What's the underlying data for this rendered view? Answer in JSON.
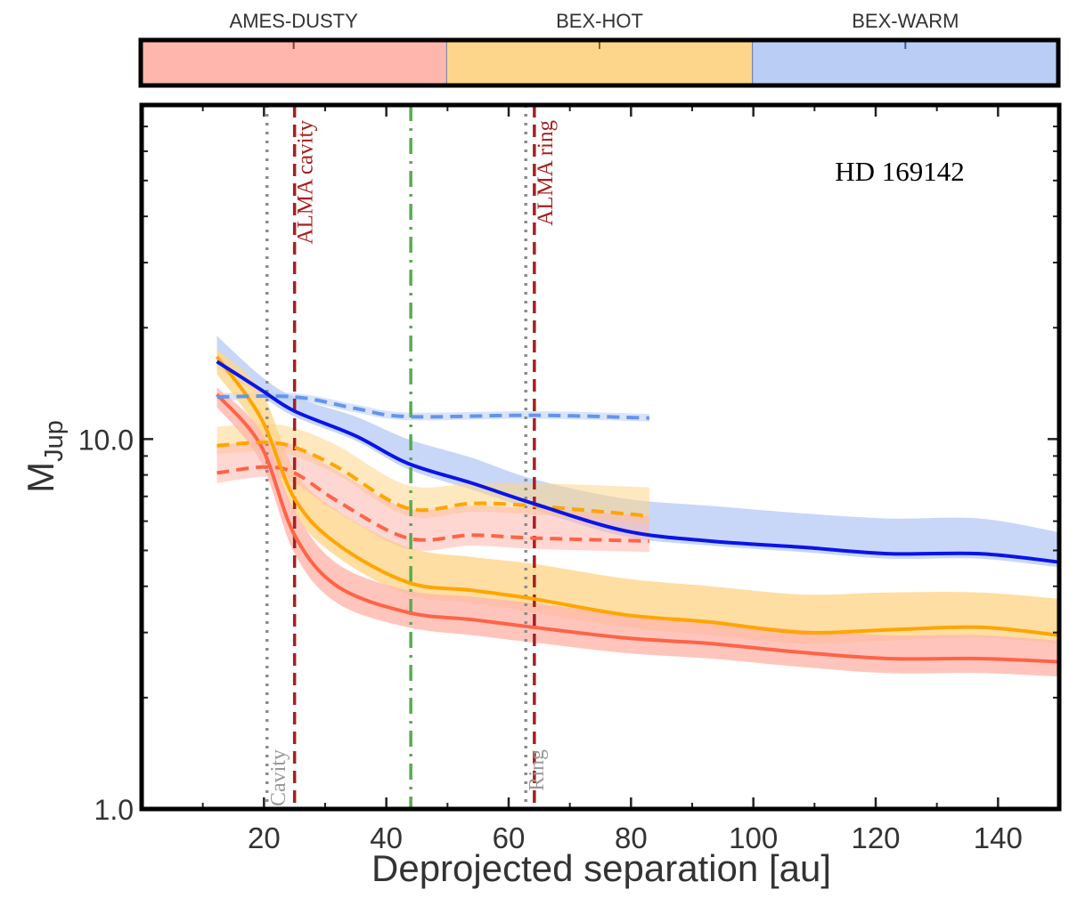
{
  "chart_data": {
    "type": "line",
    "title": "",
    "annotation": "HD 169142",
    "xlabel": "Deprojected separation [au]",
    "ylabel": "M",
    "ylabel_sub": "Jup",
    "xlim": [
      0,
      150
    ],
    "ylim": [
      1,
      80
    ],
    "yscale": "log",
    "grid": false,
    "xticks": [
      20,
      40,
      60,
      80,
      100,
      120,
      140
    ],
    "xtick_labels": [
      "20",
      "40",
      "60",
      "80",
      "100",
      "120",
      "140"
    ],
    "xminor": [
      10,
      30,
      50,
      70,
      90,
      110,
      130
    ],
    "yticks": [
      1,
      10
    ],
    "ytick_labels": [
      "1.0",
      "10.0"
    ],
    "yminor": [
      2,
      3,
      4,
      5,
      6,
      7,
      8,
      9,
      20,
      30,
      40,
      50,
      60,
      70,
      80
    ],
    "legend": {
      "placement": "top",
      "entries": [
        {
          "label": "AMES-DUSTY",
          "color": "#ffb7ad"
        },
        {
          "label": "BEX-HOT",
          "color": "#fed68b"
        },
        {
          "label": "BEX-WARM",
          "color": "#bacdf5"
        }
      ]
    },
    "vlines": [
      {
        "name": "cavity-line",
        "x": 20.5,
        "style": "dotted",
        "color": "#8c8c8c",
        "label": "Cavity",
        "label_pos": "bottom"
      },
      {
        "name": "alma-cavity-line",
        "x": 25,
        "style": "dashed",
        "color": "#a52121",
        "label": "ALMA cavity",
        "label_pos": "top"
      },
      {
        "name": "green-line",
        "x": 44,
        "style": "dashdot",
        "color": "#5aaa4f",
        "label": "",
        "label_pos": ""
      },
      {
        "name": "ring-line",
        "x": 62.8,
        "style": "dotted",
        "color": "#8c8c8c",
        "label": "Ring",
        "label_pos": "bottom"
      },
      {
        "name": "alma-ring-line",
        "x": 64.2,
        "style": "dashed",
        "color": "#a52121",
        "label": "ALMA ring",
        "label_pos": "top"
      }
    ],
    "series": [
      {
        "name": "BEX-WARM solid",
        "model": "BEX-WARM",
        "style": "solid",
        "color": "#0a14e8",
        "band_color": "#bacdf5",
        "x": [
          12.3,
          19.5,
          25,
          35,
          43.5,
          54,
          64,
          79,
          93,
          108,
          122,
          137,
          150
        ],
        "y": [
          16.2,
          13.6,
          11.9,
          10.2,
          8.6,
          7.6,
          6.7,
          5.65,
          5.3,
          5.1,
          4.9,
          4.9,
          4.65
        ],
        "lower": [
          15.6,
          13.1,
          11.5,
          9.9,
          8.3,
          7.3,
          6.45,
          5.45,
          5.15,
          4.95,
          4.75,
          4.75,
          4.5
        ],
        "upper": [
          19.0,
          14.8,
          13.0,
          11.5,
          10.0,
          8.9,
          7.8,
          6.9,
          6.6,
          6.3,
          6.1,
          6.1,
          5.6
        ]
      },
      {
        "name": "BEX-WARM dashed",
        "model": "BEX-WARM",
        "style": "dashed",
        "color": "#6495ed",
        "band_color": "#bacdf5",
        "x": [
          12.3,
          25,
          35,
          43.5,
          64,
          83
        ],
        "y": [
          13.0,
          13.0,
          12.1,
          11.5,
          11.6,
          11.4
        ],
        "lower": [
          12.7,
          12.7,
          11.8,
          11.25,
          11.35,
          11.15
        ],
        "upper": [
          13.3,
          13.3,
          12.4,
          11.8,
          11.9,
          11.7
        ]
      },
      {
        "name": "BEX-HOT solid",
        "model": "BEX-HOT",
        "style": "solid",
        "color": "#ffa500",
        "band_color": "#fed68b",
        "x": [
          12.3,
          19.5,
          25,
          32,
          43.5,
          54,
          64,
          79,
          93,
          108,
          122,
          137,
          150
        ],
        "y": [
          16.7,
          11.4,
          6.9,
          5.2,
          4.1,
          3.9,
          3.7,
          3.35,
          3.2,
          3.0,
          3.05,
          3.1,
          2.95
        ],
        "lower": [
          15.0,
          10.3,
          6.3,
          4.8,
          3.8,
          3.6,
          3.4,
          3.1,
          2.95,
          2.8,
          2.85,
          2.9,
          2.8
        ],
        "upper": [
          17.5,
          13.5,
          8.2,
          6.4,
          5.1,
          4.8,
          4.6,
          4.2,
          4.0,
          3.8,
          3.85,
          3.85,
          3.7
        ]
      },
      {
        "name": "BEX-HOT dashed",
        "model": "BEX-HOT",
        "style": "dashed",
        "color": "#ffa500",
        "band_color": "#fed68b",
        "x": [
          12.3,
          20,
          25,
          32,
          43.5,
          54,
          64,
          83
        ],
        "y": [
          9.6,
          9.8,
          9.5,
          8.4,
          6.5,
          6.7,
          6.6,
          6.2
        ],
        "lower": [
          9.1,
          9.3,
          9.0,
          8.0,
          6.2,
          6.35,
          6.25,
          5.9
        ],
        "upper": [
          10.8,
          11.0,
          10.7,
          9.6,
          7.5,
          7.6,
          7.6,
          7.4
        ]
      },
      {
        "name": "AMES-DUSTY solid",
        "model": "AMES-DUSTY",
        "style": "solid",
        "color": "#ff6347",
        "band_color": "#ffb7ad",
        "x": [
          12.3,
          19.5,
          25,
          32,
          43.5,
          54,
          64,
          79,
          93,
          108,
          122,
          137,
          150
        ],
        "y": [
          13.2,
          9.6,
          5.5,
          4.0,
          3.4,
          3.25,
          3.1,
          2.9,
          2.8,
          2.65,
          2.55,
          2.55,
          2.5
        ],
        "lower": [
          12.2,
          8.7,
          4.9,
          3.6,
          3.1,
          2.95,
          2.82,
          2.64,
          2.55,
          2.42,
          2.33,
          2.33,
          2.28
        ],
        "upper": [
          13.8,
          10.5,
          6.4,
          4.6,
          3.9,
          3.75,
          3.6,
          3.35,
          3.2,
          3.05,
          2.95,
          2.95,
          2.85
        ]
      },
      {
        "name": "AMES-DUSTY dashed",
        "model": "AMES-DUSTY",
        "style": "dashed",
        "color": "#ff6347",
        "band_color": "#ffb7ad",
        "x": [
          12.3,
          20,
          25,
          32,
          43.5,
          54,
          64,
          83
        ],
        "y": [
          8.1,
          8.4,
          8.1,
          6.8,
          5.4,
          5.5,
          5.4,
          5.3
        ],
        "lower": [
          7.6,
          7.9,
          7.6,
          6.35,
          5.05,
          5.15,
          5.05,
          4.95
        ],
        "upper": [
          9.6,
          9.9,
          9.6,
          8.2,
          6.5,
          6.6,
          6.5,
          6.2
        ]
      }
    ]
  }
}
